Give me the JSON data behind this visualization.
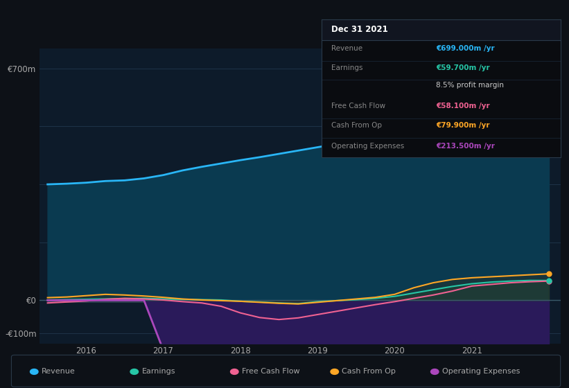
{
  "bg_color": "#0d1117",
  "plot_bg_color": "#0d1b2a",
  "x_years": [
    2015.5,
    2015.75,
    2016.0,
    2016.25,
    2016.5,
    2016.75,
    2017.0,
    2017.25,
    2017.5,
    2017.75,
    2018.0,
    2018.25,
    2018.5,
    2018.75,
    2019.0,
    2019.25,
    2019.5,
    2019.75,
    2020.0,
    2020.25,
    2020.5,
    2020.75,
    2021.0,
    2021.25,
    2021.5,
    2021.75,
    2022.0
  ],
  "revenue": [
    350,
    352,
    355,
    360,
    362,
    368,
    378,
    392,
    403,
    413,
    423,
    432,
    442,
    452,
    462,
    472,
    482,
    491,
    532,
    558,
    542,
    512,
    492,
    562,
    622,
    672,
    699
  ],
  "earnings": [
    1,
    2,
    3,
    4,
    5,
    6,
    4,
    3,
    2,
    1,
    -3,
    -5,
    -8,
    -10,
    -4,
    -1,
    2,
    6,
    12,
    22,
    32,
    42,
    50,
    55,
    58,
    60,
    59.7
  ],
  "free_cash_flow": [
    -8,
    -5,
    -2,
    3,
    6,
    4,
    1,
    -4,
    -8,
    -18,
    -38,
    -52,
    -58,
    -53,
    -43,
    -33,
    -23,
    -13,
    -4,
    6,
    16,
    28,
    43,
    48,
    53,
    56,
    58.1
  ],
  "cash_from_op": [
    8,
    10,
    14,
    18,
    16,
    13,
    9,
    4,
    1,
    -1,
    -3,
    -6,
    -9,
    -11,
    -6,
    -1,
    4,
    9,
    18,
    38,
    53,
    63,
    68,
    71,
    74,
    77,
    79.9
  ],
  "op_expenses": [
    0,
    0,
    0,
    0,
    0,
    0,
    150,
    152,
    155,
    158,
    160,
    162,
    165,
    165,
    163,
    162,
    160,
    158,
    160,
    165,
    168,
    170,
    172,
    180,
    195,
    205,
    213.5
  ],
  "revenue_color": "#29b6f6",
  "revenue_fill_color": "#0a3a50",
  "earnings_color": "#26c6a6",
  "free_cash_color": "#f06292",
  "cash_op_color": "#ffa726",
  "op_exp_color": "#ab47bc",
  "op_exp_fill_color": "#2a1a5a",
  "earnings_fill_color": "#1a4a40",
  "cash_op_fill_color": "#3a2a10",
  "zero_line_fill_color": "#607d8b",
  "ylim_low": -130,
  "ylim_high": 760,
  "ytick_vals": [
    -100,
    0,
    700
  ],
  "ytick_labels": [
    "-€100m",
    "€0",
    "€700m"
  ],
  "xtick_vals": [
    2016,
    2017,
    2018,
    2019,
    2020,
    2021
  ],
  "xmin": 2015.4,
  "xmax": 2022.15,
  "vline_x": 2021.0,
  "grid_lines_y": [
    -100,
    0,
    175,
    350,
    525,
    700
  ],
  "grid_color": "#1e3348",
  "legend_items": [
    {
      "label": "Revenue",
      "color": "#29b6f6"
    },
    {
      "label": "Earnings",
      "color": "#26c6a6"
    },
    {
      "label": "Free Cash Flow",
      "color": "#f06292"
    },
    {
      "label": "Cash From Op",
      "color": "#ffa726"
    },
    {
      "label": "Operating Expenses",
      "color": "#ab47bc"
    }
  ],
  "info_box": {
    "date": "Dec 31 2021",
    "rows": [
      {
        "label": "Revenue",
        "value": "€699.000m /yr",
        "label_color": "#888888",
        "value_color": "#29b6f6"
      },
      {
        "label": "Earnings",
        "value": "€59.700m /yr",
        "label_color": "#888888",
        "value_color": "#26c6a6"
      },
      {
        "label": "",
        "value": "8.5% profit margin",
        "label_color": "#888888",
        "value_color": "#cccccc"
      },
      {
        "label": "Free Cash Flow",
        "value": "€58.100m /yr",
        "label_color": "#888888",
        "value_color": "#f06292"
      },
      {
        "label": "Cash From Op",
        "value": "€79.900m /yr",
        "label_color": "#888888",
        "value_color": "#ffa726"
      },
      {
        "label": "Operating Expenses",
        "value": "€213.500m /yr",
        "label_color": "#888888",
        "value_color": "#ab47bc"
      }
    ]
  }
}
